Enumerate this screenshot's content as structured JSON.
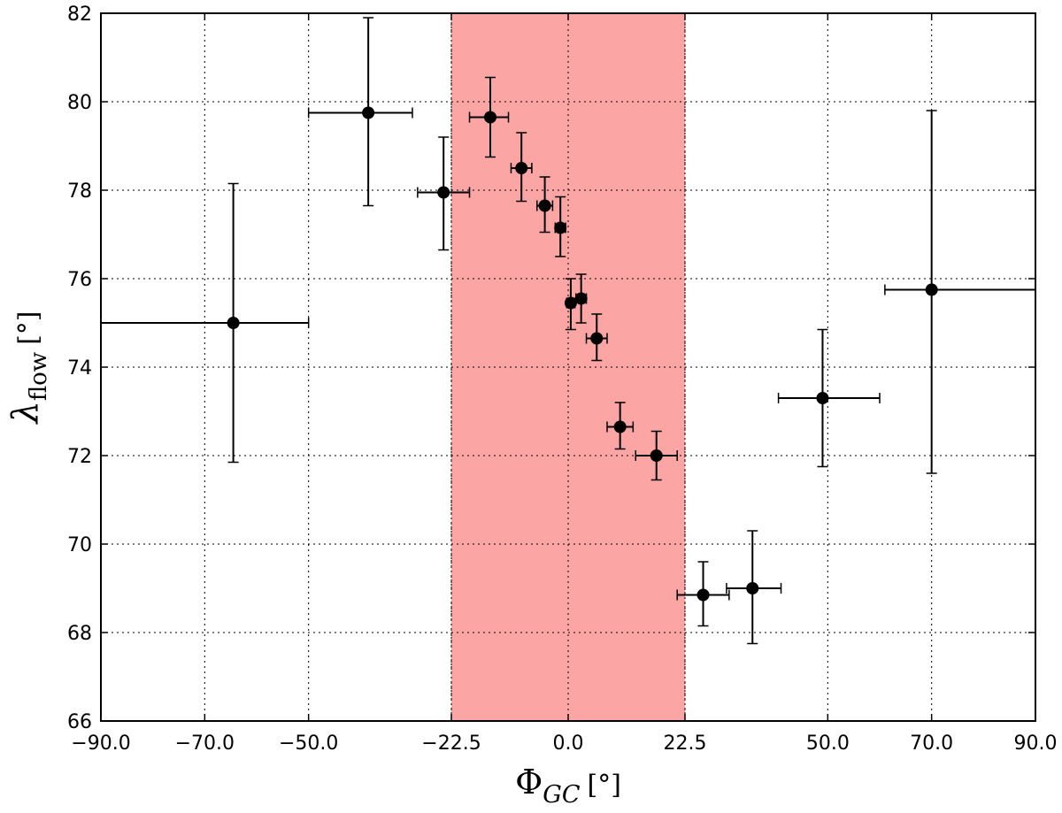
{
  "chart_data": {
    "type": "scatter",
    "title": "",
    "xlabel": {
      "main": "Φ",
      "sub": "GC",
      "unit": "[°]"
    },
    "ylabel": {
      "main": "λ",
      "sub": "flow",
      "unit": "[°]"
    },
    "xlim": [
      -90,
      90
    ],
    "ylim": [
      66,
      82
    ],
    "grid": true,
    "x_tick_values": [
      -90,
      -70,
      -50,
      -22.5,
      0,
      22.5,
      50,
      70,
      90
    ],
    "x_tick_labels": [
      "−90.0",
      "−70.0",
      "−50.0",
      "−22.5",
      "0.0",
      "22.5",
      "50.0",
      "70.0",
      "90.0"
    ],
    "y_tick_values": [
      66,
      68,
      70,
      72,
      74,
      76,
      78,
      80,
      82
    ],
    "y_tick_labels": [
      "66",
      "68",
      "70",
      "72",
      "74",
      "76",
      "78",
      "80",
      "82"
    ],
    "shaded_region": {
      "x": [
        -22.5,
        22.5
      ],
      "color": "#fca5a5"
    },
    "marker_color": "#000000",
    "points": [
      {
        "x": -64.5,
        "y": 75.0,
        "xerr": [
          25.5,
          14.5
        ],
        "yerr": [
          3.15,
          3.15
        ]
      },
      {
        "x": -38.5,
        "y": 79.75,
        "xerr": [
          11.5,
          8.5
        ],
        "yerr": [
          2.1,
          2.15
        ]
      },
      {
        "x": -24.0,
        "y": 77.95,
        "xerr": [
          5.0,
          5.0
        ],
        "yerr": [
          1.3,
          1.25
        ]
      },
      {
        "x": -15.0,
        "y": 79.65,
        "xerr": [
          4.0,
          3.5
        ],
        "yerr": [
          0.9,
          0.9
        ]
      },
      {
        "x": -9.0,
        "y": 78.5,
        "xerr": [
          2.0,
          2.0
        ],
        "yerr": [
          0.75,
          0.8
        ]
      },
      {
        "x": -4.5,
        "y": 77.65,
        "xerr": [
          1.5,
          1.5
        ],
        "yerr": [
          0.6,
          0.65
        ]
      },
      {
        "x": -1.5,
        "y": 77.15,
        "xerr": [
          1.0,
          1.0
        ],
        "yerr": [
          0.65,
          0.7
        ]
      },
      {
        "x": 0.5,
        "y": 75.45,
        "xerr": [
          0.8,
          0.8
        ],
        "yerr": [
          0.6,
          0.55
        ]
      },
      {
        "x": 2.5,
        "y": 75.55,
        "xerr": [
          1.0,
          1.0
        ],
        "yerr": [
          0.55,
          0.55
        ]
      },
      {
        "x": 5.5,
        "y": 74.65,
        "xerr": [
          2.0,
          2.0
        ],
        "yerr": [
          0.5,
          0.55
        ]
      },
      {
        "x": 10.0,
        "y": 72.65,
        "xerr": [
          2.5,
          2.5
        ],
        "yerr": [
          0.5,
          0.55
        ]
      },
      {
        "x": 17.0,
        "y": 72.0,
        "xerr": [
          4.0,
          4.0
        ],
        "yerr": [
          0.55,
          0.55
        ]
      },
      {
        "x": 26.0,
        "y": 68.85,
        "xerr": [
          5.0,
          5.0
        ],
        "yerr": [
          0.7,
          0.75
        ]
      },
      {
        "x": 35.5,
        "y": 69.0,
        "xerr": [
          5.0,
          5.5
        ],
        "yerr": [
          1.25,
          1.3
        ]
      },
      {
        "x": 49.0,
        "y": 73.3,
        "xerr": [
          8.5,
          11.0
        ],
        "yerr": [
          1.55,
          1.55
        ]
      },
      {
        "x": 70.0,
        "y": 75.75,
        "xerr": [
          9.0,
          20.0
        ],
        "yerr": [
          4.15,
          4.05
        ]
      }
    ]
  }
}
